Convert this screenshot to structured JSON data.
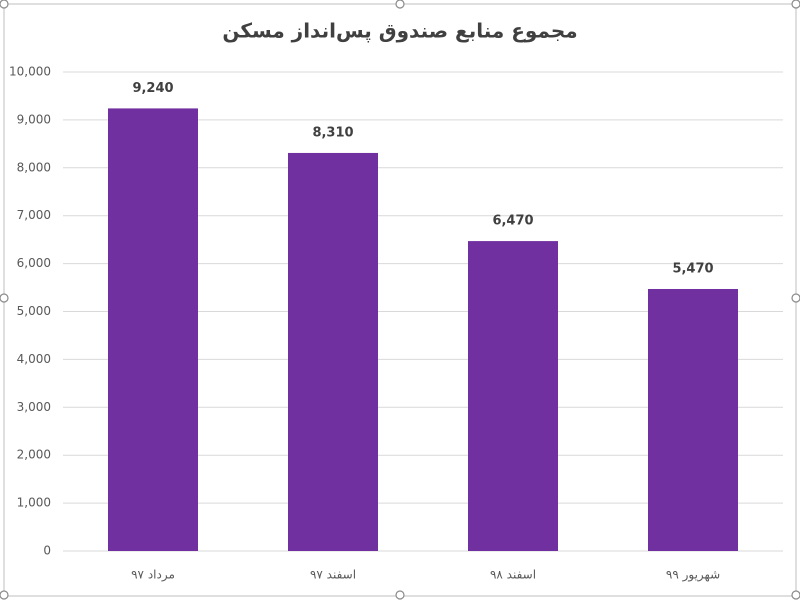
{
  "chart_data": {
    "type": "bar",
    "title": "مجموع منابع صندوق پس‌انداز مسکن",
    "categories": [
      "مرداد ۹۷",
      "اسفند ۹۷",
      "اسفند ۹۸",
      "شهریور ۹۹"
    ],
    "values": [
      9240,
      8310,
      6470,
      5470
    ],
    "value_labels": [
      "9,240",
      "8,310",
      "6,470",
      "5,470"
    ],
    "color": "#7030a0",
    "ylim": [
      0,
      10000
    ],
    "yticks": [
      0,
      {
        "value": 1000,
        "label": "1,000"
      },
      {
        "value": 2000,
        "label": "2,000"
      },
      {
        "value": 3000,
        "label": "3,000"
      },
      {
        "value": 4000,
        "label": "4,000"
      },
      {
        "value": 5000,
        "label": "5,000"
      },
      {
        "value": 6000,
        "label": "6,000"
      },
      {
        "value": 7000,
        "label": "7,000"
      },
      {
        "value": 8000,
        "label": "8,000"
      },
      {
        "value": 9000,
        "label": "9,000"
      },
      {
        "value": 10000,
        "label": "10,000"
      }
    ],
    "grid": true
  }
}
